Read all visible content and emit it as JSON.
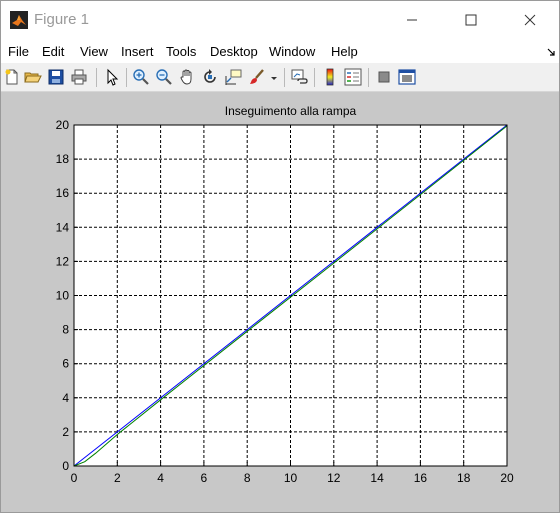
{
  "window": {
    "title": "Figure 1",
    "controls": [
      "minimize",
      "maximize",
      "close"
    ]
  },
  "menubar": {
    "items": [
      "File",
      "Edit",
      "View",
      "Insert",
      "Tools",
      "Desktop",
      "Window",
      "Help"
    ]
  },
  "toolbar": {
    "buttons": [
      {
        "name": "new-figure",
        "icon": "new-file-icon"
      },
      {
        "name": "open-file",
        "icon": "folder-open-icon"
      },
      {
        "name": "save-figure",
        "icon": "floppy-disk-icon"
      },
      {
        "name": "print-figure",
        "icon": "printer-icon"
      },
      {
        "name": "edit-plot",
        "icon": "arrow-pointer-icon"
      },
      {
        "name": "zoom-in",
        "icon": "zoom-in-icon"
      },
      {
        "name": "zoom-out",
        "icon": "zoom-out-icon"
      },
      {
        "name": "pan",
        "icon": "hand-icon"
      },
      {
        "name": "rotate-3d",
        "icon": "rotate-icon"
      },
      {
        "name": "data-cursor",
        "icon": "data-cursor-icon"
      },
      {
        "name": "brush",
        "icon": "brush-icon"
      },
      {
        "name": "link-plot",
        "icon": "link-plot-icon"
      },
      {
        "name": "insert-colorbar",
        "icon": "colorbar-icon"
      },
      {
        "name": "insert-legend",
        "icon": "legend-icon"
      },
      {
        "name": "hide-plot-tools",
        "icon": "hide-tools-icon"
      },
      {
        "name": "show-plot-tools",
        "icon": "show-tools-icon"
      }
    ]
  },
  "chart_data": {
    "type": "line",
    "title": "Inseguimento alla rampa",
    "xlabel": "",
    "ylabel": "",
    "xlim": [
      0,
      20
    ],
    "ylim": [
      0,
      20
    ],
    "xticks": [
      0,
      2,
      4,
      6,
      8,
      10,
      12,
      14,
      16,
      18,
      20
    ],
    "yticks": [
      0,
      2,
      4,
      6,
      8,
      10,
      12,
      14,
      16,
      18,
      20
    ],
    "grid": true,
    "series": [
      {
        "color": "#0000ff",
        "x": [
          0,
          20
        ],
        "y": [
          0,
          20
        ]
      },
      {
        "color": "#008000",
        "x": [
          0,
          0.5,
          1,
          2,
          4,
          8,
          12,
          16,
          20
        ],
        "y": [
          0,
          0.25,
          0.75,
          1.85,
          3.88,
          7.9,
          11.9,
          15.92,
          19.95
        ]
      }
    ]
  }
}
